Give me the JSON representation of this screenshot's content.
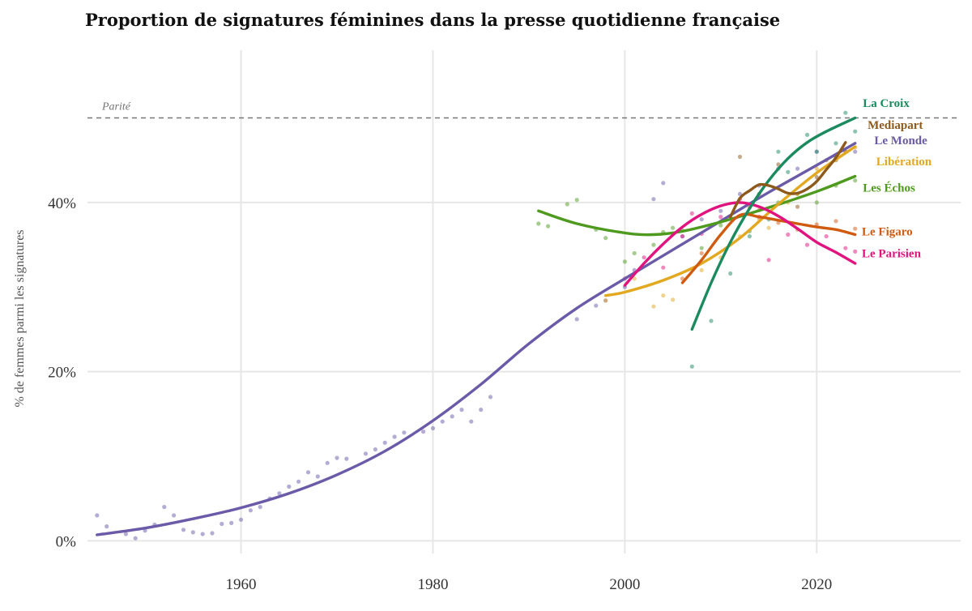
{
  "chart_data": {
    "type": "line",
    "title": "Proportion de signatures féminines dans la presse quotidienne française",
    "xlabel": "",
    "ylabel": "% de femmes parmi les signatures",
    "xlim": [
      1944,
      2035
    ],
    "ylim": [
      -1.5,
      58
    ],
    "x_ticks": [
      1960,
      1980,
      2000,
      2020
    ],
    "y_ticks": [
      {
        "value": 0,
        "label": "0%"
      },
      {
        "value": 20,
        "label": "20%"
      },
      {
        "value": 40,
        "label": "40%"
      }
    ],
    "reference_line": {
      "value": 50,
      "label": "Parité"
    },
    "series": [
      {
        "name": "Le Monde",
        "color": "#6a5aa8",
        "label_at": [
          2026,
          46.9
        ],
        "points": [
          [
            1945,
            3
          ],
          [
            1946,
            1.7
          ],
          [
            1948,
            0.8
          ],
          [
            1949,
            0.3
          ],
          [
            1950,
            1.2
          ],
          [
            1951,
            1.9
          ],
          [
            1952,
            4
          ],
          [
            1953,
            3
          ],
          [
            1954,
            1.3
          ],
          [
            1955,
            1
          ],
          [
            1956,
            0.8
          ],
          [
            1957,
            0.9
          ],
          [
            1958,
            2
          ],
          [
            1959,
            2.1
          ],
          [
            1960,
            2.5
          ],
          [
            1961,
            3.6
          ],
          [
            1962,
            4
          ],
          [
            1963,
            5
          ],
          [
            1964,
            5.6
          ],
          [
            1965,
            6.4
          ],
          [
            1966,
            7
          ],
          [
            1967,
            8.1
          ],
          [
            1968,
            7.6
          ],
          [
            1969,
            9.2
          ],
          [
            1970,
            9.8
          ],
          [
            1971,
            9.7
          ],
          [
            1973,
            10.3
          ],
          [
            1974,
            10.8
          ],
          [
            1975,
            11.6
          ],
          [
            1976,
            12.3
          ],
          [
            1977,
            12.8
          ],
          [
            1979,
            12.9
          ],
          [
            1980,
            13.3
          ],
          [
            1981,
            14.1
          ],
          [
            1982,
            14.7
          ],
          [
            1983,
            15.5
          ],
          [
            1984,
            14.1
          ],
          [
            1985,
            15.5
          ],
          [
            1986,
            17
          ],
          [
            1995,
            26.2
          ],
          [
            1997,
            27.8
          ],
          [
            1998,
            28.4
          ],
          [
            2000,
            30
          ],
          [
            2001,
            32
          ],
          [
            2003,
            40.4
          ],
          [
            2004,
            42.3
          ],
          [
            2006,
            36
          ],
          [
            2008,
            38
          ],
          [
            2010,
            39
          ],
          [
            2012,
            41
          ],
          [
            2014,
            42
          ],
          [
            2016,
            44
          ],
          [
            2018,
            44
          ],
          [
            2020,
            46
          ],
          [
            2022,
            45
          ],
          [
            2024,
            46
          ]
        ],
        "curve": [
          [
            1945,
            0.7
          ],
          [
            1950,
            1.5
          ],
          [
            1955,
            2.6
          ],
          [
            1960,
            3.9
          ],
          [
            1965,
            5.6
          ],
          [
            1970,
            7.8
          ],
          [
            1975,
            10.6
          ],
          [
            1980,
            14.2
          ],
          [
            1985,
            18.5
          ],
          [
            1990,
            23.3
          ],
          [
            1995,
            27.5
          ],
          [
            2000,
            31
          ],
          [
            2005,
            34.4
          ],
          [
            2010,
            37.8
          ],
          [
            2015,
            41.2
          ],
          [
            2020,
            44.4
          ],
          [
            2024,
            47
          ]
        ]
      },
      {
        "name": "Les Échos",
        "color": "#4e9a1f",
        "label_at": [
          2024.8,
          41.3
        ],
        "points": [
          [
            1991,
            37.5
          ],
          [
            1992,
            37.2
          ],
          [
            1994,
            39.8
          ],
          [
            1995,
            40.3
          ],
          [
            1997,
            36.8
          ],
          [
            1998,
            35.8
          ],
          [
            2000,
            33
          ],
          [
            2001,
            34
          ],
          [
            2003,
            35
          ],
          [
            2004,
            36.5
          ],
          [
            2005,
            37
          ],
          [
            2006,
            36.7
          ],
          [
            2008,
            34.6
          ],
          [
            2010,
            37.3
          ],
          [
            2013,
            36.6
          ],
          [
            2016,
            40
          ],
          [
            2018,
            41
          ],
          [
            2020,
            40
          ],
          [
            2022,
            42
          ],
          [
            2024,
            42.6
          ]
        ],
        "curve": [
          [
            1991,
            39
          ],
          [
            1995,
            37.5
          ],
          [
            2000,
            36.4
          ],
          [
            2003,
            36.2
          ],
          [
            2006,
            36.6
          ],
          [
            2010,
            37.7
          ],
          [
            2015,
            39.4
          ],
          [
            2020,
            41.3
          ],
          [
            2024,
            43.1
          ]
        ]
      },
      {
        "name": "Libération",
        "color": "#e2a820",
        "label_at": [
          2026.2,
          44.4
        ],
        "points": [
          [
            1998,
            28.4
          ],
          [
            2001,
            31
          ],
          [
            2003,
            27.7
          ],
          [
            2004,
            29
          ],
          [
            2005,
            28.5
          ],
          [
            2008,
            32
          ],
          [
            2010,
            33.5
          ],
          [
            2012,
            36
          ],
          [
            2014,
            38
          ],
          [
            2015,
            37
          ],
          [
            2017,
            40
          ],
          [
            2018,
            41
          ],
          [
            2020,
            44
          ],
          [
            2022,
            45
          ],
          [
            2023,
            46
          ],
          [
            2024,
            46.5
          ]
        ],
        "curve": [
          [
            1998,
            29
          ],
          [
            2000,
            29.4
          ],
          [
            2004,
            30.8
          ],
          [
            2008,
            32.8
          ],
          [
            2012,
            35.8
          ],
          [
            2016,
            39.8
          ],
          [
            2020,
            43.5
          ],
          [
            2024,
            46.6
          ]
        ]
      },
      {
        "name": "Le Figaro",
        "color": "#cf5a10",
        "label_at": [
          2024.7,
          36.1
        ],
        "points": [
          [
            2006,
            31
          ],
          [
            2008,
            34
          ],
          [
            2011,
            38.3
          ],
          [
            2013,
            39.4
          ],
          [
            2014,
            39.1
          ],
          [
            2016,
            37.6
          ],
          [
            2018,
            36.8
          ],
          [
            2020,
            37.4
          ],
          [
            2022,
            37.8
          ],
          [
            2024,
            36.9
          ]
        ],
        "curve": [
          [
            2006,
            30.5
          ],
          [
            2008,
            33.2
          ],
          [
            2010,
            36.2
          ],
          [
            2012,
            38.5
          ],
          [
            2014,
            38.3
          ],
          [
            2016,
            37.9
          ],
          [
            2018,
            37.5
          ],
          [
            2020,
            37.1
          ],
          [
            2022,
            36.8
          ],
          [
            2024,
            36.2
          ]
        ]
      },
      {
        "name": "Le Parisien",
        "color": "#e0137f",
        "label_at": [
          2024.7,
          33.5
        ],
        "points": [
          [
            2000,
            31
          ],
          [
            2002,
            33.5
          ],
          [
            2004,
            32.3
          ],
          [
            2006,
            36
          ],
          [
            2007,
            38.7
          ],
          [
            2008,
            36.3
          ],
          [
            2010,
            38.3
          ],
          [
            2012,
            40.4
          ],
          [
            2014,
            38.3
          ],
          [
            2015,
            33.2
          ],
          [
            2017,
            36.2
          ],
          [
            2019,
            35
          ],
          [
            2021,
            36
          ],
          [
            2023,
            34.6
          ],
          [
            2024,
            34.2
          ]
        ],
        "curve": [
          [
            2000,
            30.2
          ],
          [
            2002,
            32.8
          ],
          [
            2004,
            35.1
          ],
          [
            2006,
            37.1
          ],
          [
            2008,
            38.6
          ],
          [
            2010,
            39.6
          ],
          [
            2012,
            40
          ],
          [
            2014,
            39.5
          ],
          [
            2016,
            38.4
          ],
          [
            2018,
            36.9
          ],
          [
            2020,
            35.3
          ],
          [
            2022,
            34.1
          ],
          [
            2024,
            32.8
          ]
        ]
      },
      {
        "name": "La Croix",
        "color": "#1b8a5f",
        "label_at": [
          2024.8,
          51.3
        ],
        "points": [
          [
            2007,
            20.6
          ],
          [
            2009,
            26
          ],
          [
            2011,
            31.6
          ],
          [
            2013,
            36
          ],
          [
            2015,
            38
          ],
          [
            2016,
            46
          ],
          [
            2017,
            43.6
          ],
          [
            2019,
            48
          ],
          [
            2020,
            46
          ],
          [
            2022,
            47
          ],
          [
            2023,
            50.6
          ],
          [
            2024,
            48.4
          ]
        ],
        "curve": [
          [
            2007,
            25
          ],
          [
            2009,
            30.5
          ],
          [
            2011,
            35.3
          ],
          [
            2013,
            39.3
          ],
          [
            2015,
            42.6
          ],
          [
            2017,
            45.2
          ],
          [
            2019,
            47.1
          ],
          [
            2021,
            48.4
          ],
          [
            2024,
            50
          ]
        ]
      },
      {
        "name": "Mediapart",
        "color": "#8e5a1b",
        "label_at": [
          2025.3,
          48.7
        ],
        "points": [
          [
            2012,
            45.4
          ],
          [
            2014,
            41
          ],
          [
            2016,
            44.5
          ],
          [
            2018,
            39.5
          ],
          [
            2020,
            43
          ],
          [
            2021,
            45
          ],
          [
            2022,
            45.3
          ],
          [
            2023,
            46
          ]
        ],
        "curve": [
          [
            2011,
            38.3
          ],
          [
            2012,
            40.5
          ],
          [
            2013,
            41.4
          ],
          [
            2014,
            42.1
          ],
          [
            2015,
            42
          ],
          [
            2016,
            41.6
          ],
          [
            2017,
            41.1
          ],
          [
            2018,
            41.1
          ],
          [
            2019,
            41.6
          ],
          [
            2020,
            42.5
          ],
          [
            2021,
            43.9
          ],
          [
            2022,
            45.3
          ],
          [
            2023,
            47.1
          ]
        ]
      }
    ]
  }
}
